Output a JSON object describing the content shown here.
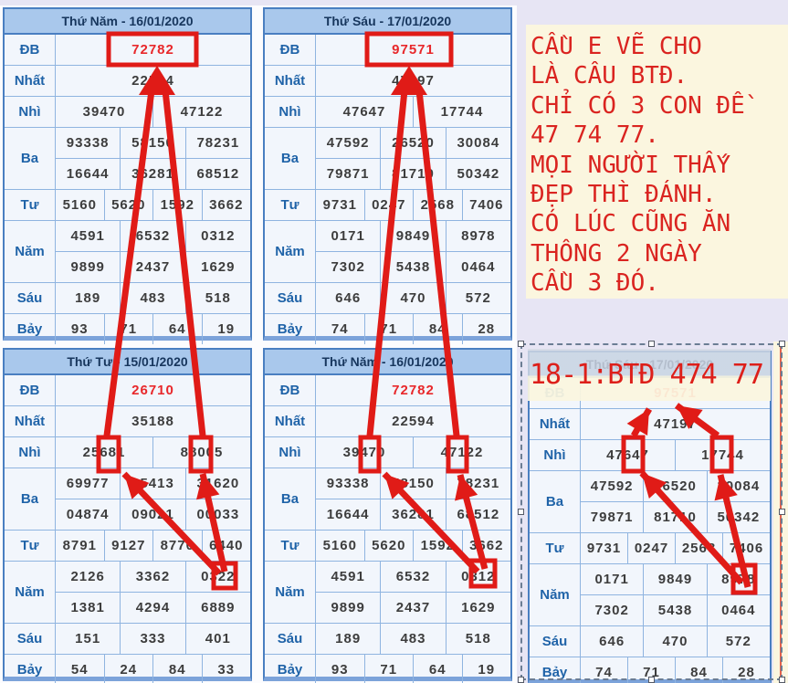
{
  "page": {
    "background": "#e7e5f4"
  },
  "colors": {
    "annotation_red": "#e01b17",
    "table_border": "#4a7fc1",
    "header_bg": "#a9c8ec",
    "title_text": "#17365d",
    "label_text": "#1f63a8",
    "value_text": "#3d3d3d",
    "special_value": "#e8282b",
    "note_bg": "#fbf6df"
  },
  "note_box": {
    "lines": [
      "CẦU E VẼ CHO",
      "LÀ CÂU BTĐ.",
      "CHỈ CÓ 3 CON ĐỀ",
      "47 74 77.",
      "MỌI NGƯỜI THẤY",
      "ĐẸP THÌ ĐÁNH.",
      "CÓ LÚC CŨNG ĂN",
      "THÔNG 2 NGÀY",
      "CẦU 3 ĐÓ."
    ]
  },
  "overlay_label": {
    "text": "18-1:BTĐ 474 77"
  },
  "tables": [
    {
      "id": "top-left",
      "title": "Thứ Năm - 16/01/2020",
      "rows": [
        {
          "label": "ĐB",
          "special": true,
          "lines": [
            [
              "72782"
            ]
          ]
        },
        {
          "label": "Nhất",
          "lines": [
            [
              "22594"
            ]
          ]
        },
        {
          "label": "Nhì",
          "lines": [
            [
              "39470",
              "47122"
            ]
          ]
        },
        {
          "label": "Ba",
          "lines": [
            [
              "93338",
              "58150",
              "78231"
            ],
            [
              "16644",
              "36281",
              "68512"
            ]
          ]
        },
        {
          "label": "Tư",
          "lines": [
            [
              "5160",
              "5620",
              "1592",
              "3662"
            ]
          ]
        },
        {
          "label": "Năm",
          "lines": [
            [
              "4591",
              "6532",
              "0312"
            ],
            [
              "9899",
              "2437",
              "1629"
            ]
          ]
        },
        {
          "label": "Sáu",
          "lines": [
            [
              "189",
              "483",
              "518"
            ]
          ]
        },
        {
          "label": "Bảy",
          "lines": [
            [
              "93",
              "71",
              "64",
              "19"
            ]
          ]
        }
      ]
    },
    {
      "id": "top-middle",
      "title": "Thứ Sáu - 17/01/2020",
      "rows": [
        {
          "label": "ĐB",
          "special": true,
          "lines": [
            [
              "97571"
            ]
          ]
        },
        {
          "label": "Nhất",
          "lines": [
            [
              "47197"
            ]
          ]
        },
        {
          "label": "Nhì",
          "lines": [
            [
              "47647",
              "17744"
            ]
          ]
        },
        {
          "label": "Ba",
          "lines": [
            [
              "47592",
              "26520",
              "30084"
            ],
            [
              "79871",
              "81710",
              "50342"
            ]
          ]
        },
        {
          "label": "Tư",
          "lines": [
            [
              "9731",
              "0247",
              "2568",
              "7406"
            ]
          ]
        },
        {
          "label": "Năm",
          "lines": [
            [
              "0171",
              "9849",
              "8978"
            ],
            [
              "7302",
              "5438",
              "0464"
            ]
          ]
        },
        {
          "label": "Sáu",
          "lines": [
            [
              "646",
              "470",
              "572"
            ]
          ]
        },
        {
          "label": "Bảy",
          "lines": [
            [
              "74",
              "71",
              "84",
              "28"
            ]
          ]
        }
      ]
    },
    {
      "id": "bottom-left",
      "title": "Thứ Tư - 15/01/2020",
      "rows": [
        {
          "label": "ĐB",
          "special": true,
          "lines": [
            [
              "26710"
            ]
          ]
        },
        {
          "label": "Nhất",
          "lines": [
            [
              "35188"
            ]
          ]
        },
        {
          "label": "Nhì",
          "lines": [
            [
              "25681",
              "88005"
            ]
          ]
        },
        {
          "label": "Ba",
          "lines": [
            [
              "69977",
              "85413",
              "31620"
            ],
            [
              "04874",
              "09021",
              "00033"
            ]
          ]
        },
        {
          "label": "Tư",
          "lines": [
            [
              "8791",
              "9127",
              "8770",
              "6440"
            ]
          ]
        },
        {
          "label": "Năm",
          "lines": [
            [
              "2126",
              "3362",
              "0322"
            ],
            [
              "1381",
              "4294",
              "6889"
            ]
          ]
        },
        {
          "label": "Sáu",
          "lines": [
            [
              "151",
              "333",
              "401"
            ]
          ]
        },
        {
          "label": "Bảy",
          "lines": [
            [
              "54",
              "24",
              "84",
              "33"
            ]
          ]
        }
      ]
    },
    {
      "id": "bottom-middle",
      "title": "Thứ Năm - 16/01/2020",
      "rows": [
        {
          "label": "ĐB",
          "special": true,
          "lines": [
            [
              "72782"
            ]
          ]
        },
        {
          "label": "Nhất",
          "lines": [
            [
              "22594"
            ]
          ]
        },
        {
          "label": "Nhì",
          "lines": [
            [
              "39470",
              "47122"
            ]
          ]
        },
        {
          "label": "Ba",
          "lines": [
            [
              "93338",
              "58150",
              "78231"
            ],
            [
              "16644",
              "36281",
              "68512"
            ]
          ]
        },
        {
          "label": "Tư",
          "lines": [
            [
              "5160",
              "5620",
              "1592",
              "3662"
            ]
          ]
        },
        {
          "label": "Năm",
          "lines": [
            [
              "4591",
              "6532",
              "0312"
            ],
            [
              "9899",
              "2437",
              "1629"
            ]
          ]
        },
        {
          "label": "Sáu",
          "lines": [
            [
              "189",
              "483",
              "518"
            ]
          ]
        },
        {
          "label": "Bảy",
          "lines": [
            [
              "93",
              "71",
              "64",
              "19"
            ]
          ]
        }
      ]
    },
    {
      "id": "bottom-right",
      "title": "Thứ Sáu - 17/01/2020",
      "rows": [
        {
          "label": "ĐB",
          "special": true,
          "lines": [
            [
              "97571"
            ]
          ]
        },
        {
          "label": "Nhất",
          "lines": [
            [
              "47197"
            ]
          ]
        },
        {
          "label": "Nhì",
          "lines": [
            [
              "47647",
              "17744"
            ]
          ]
        },
        {
          "label": "Ba",
          "lines": [
            [
              "47592",
              "26520",
              "30084"
            ],
            [
              "79871",
              "81710",
              "50342"
            ]
          ]
        },
        {
          "label": "Tư",
          "lines": [
            [
              "9731",
              "0247",
              "2568",
              "7406"
            ]
          ]
        },
        {
          "label": "Năm",
          "lines": [
            [
              "0171",
              "9849",
              "8978"
            ],
            [
              "7302",
              "5438",
              "0464"
            ]
          ]
        },
        {
          "label": "Sáu",
          "lines": [
            [
              "646",
              "470",
              "572"
            ]
          ]
        },
        {
          "label": "Bảy",
          "lines": [
            [
              "74",
              "71",
              "84",
              "28"
            ]
          ]
        }
      ]
    }
  ]
}
